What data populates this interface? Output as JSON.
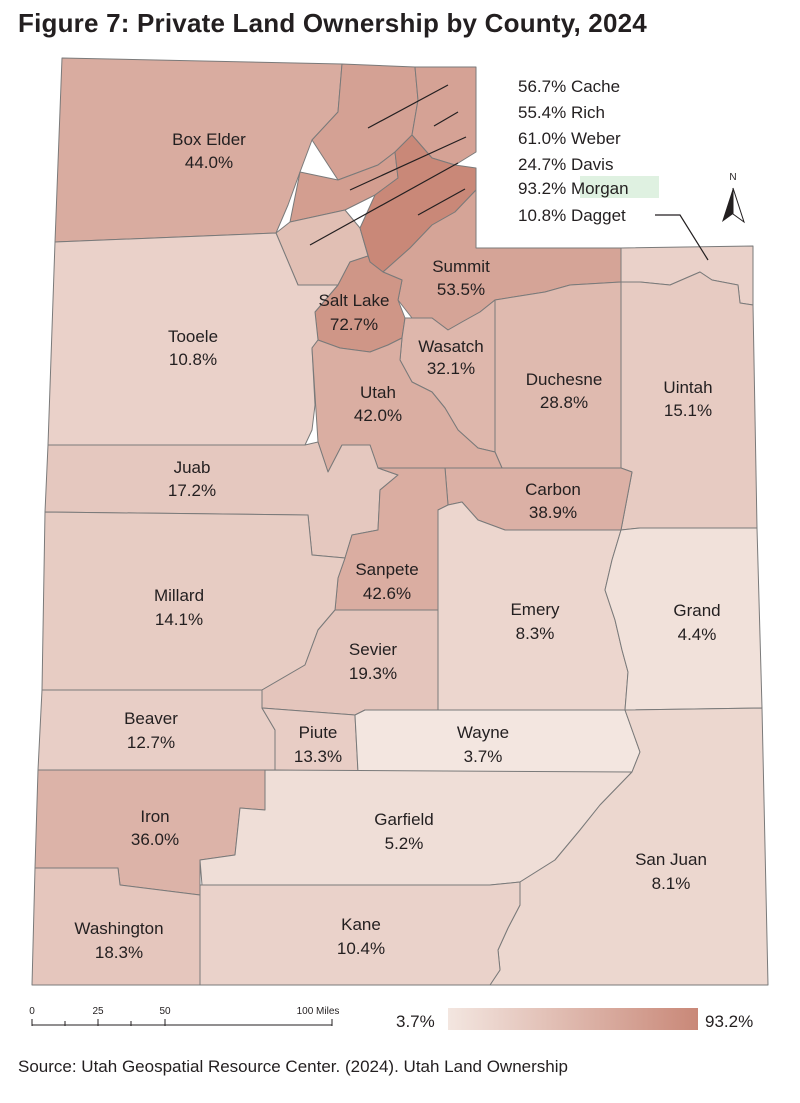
{
  "title": "Figure 7: Private Land Ownership by County, 2024",
  "source": "Source: Utah Geospatial Resource Center. (2024). Utah Land Ownership",
  "north_label": "N",
  "scale_bar": {
    "ticks": [
      "0",
      "25",
      "50",
      "100 Miles"
    ]
  },
  "legend": {
    "min": "3.7%",
    "max": "93.2%",
    "min_color": "#f3e6e0",
    "max_color": "#c98878"
  },
  "highlight_color": "#dff1e1",
  "counties": [
    {
      "id": "box-elder",
      "name": "Box Elder",
      "value": "44.0%",
      "pct": 44.0
    },
    {
      "id": "cache",
      "name": "Cache",
      "value": "56.7%",
      "pct": 56.7
    },
    {
      "id": "rich",
      "name": "Rich",
      "value": "55.4%",
      "pct": 55.4
    },
    {
      "id": "weber",
      "name": "Weber",
      "value": "61.0%",
      "pct": 61.0
    },
    {
      "id": "davis",
      "name": "Davis",
      "value": "24.7%",
      "pct": 24.7
    },
    {
      "id": "morgan",
      "name": "Morgan",
      "value": "93.2%",
      "pct": 93.2
    },
    {
      "id": "daggett",
      "name": "Dagget",
      "value": "10.8%",
      "pct": 10.8
    },
    {
      "id": "summit",
      "name": "Summit",
      "value": "53.5%",
      "pct": 53.5
    },
    {
      "id": "salt-lake",
      "name": "Salt Lake",
      "value": "72.7%",
      "pct": 72.7
    },
    {
      "id": "tooele",
      "name": "Tooele",
      "value": "10.8%",
      "pct": 10.8
    },
    {
      "id": "wasatch",
      "name": "Wasatch",
      "value": "32.1%",
      "pct": 32.1
    },
    {
      "id": "duchesne",
      "name": "Duchesne",
      "value": "28.8%",
      "pct": 28.8
    },
    {
      "id": "uintah",
      "name": "Uintah",
      "value": "15.1%",
      "pct": 15.1
    },
    {
      "id": "utah",
      "name": "Utah",
      "value": "42.0%",
      "pct": 42.0
    },
    {
      "id": "juab",
      "name": "Juab",
      "value": "17.2%",
      "pct": 17.2
    },
    {
      "id": "carbon",
      "name": "Carbon",
      "value": "38.9%",
      "pct": 38.9
    },
    {
      "id": "sanpete",
      "name": "Sanpete",
      "value": "42.6%",
      "pct": 42.6
    },
    {
      "id": "millard",
      "name": "Millard",
      "value": "14.1%",
      "pct": 14.1
    },
    {
      "id": "emery",
      "name": "Emery",
      "value": "8.3%",
      "pct": 8.3
    },
    {
      "id": "grand",
      "name": "Grand",
      "value": "4.4%",
      "pct": 4.4
    },
    {
      "id": "sevier",
      "name": "Sevier",
      "value": "19.3%",
      "pct": 19.3
    },
    {
      "id": "beaver",
      "name": "Beaver",
      "value": "12.7%",
      "pct": 12.7
    },
    {
      "id": "piute",
      "name": "Piute",
      "value": "13.3%",
      "pct": 13.3
    },
    {
      "id": "wayne",
      "name": "Wayne",
      "value": "3.7%",
      "pct": 3.7
    },
    {
      "id": "iron",
      "name": "Iron",
      "value": "36.0%",
      "pct": 36.0
    },
    {
      "id": "garfield",
      "name": "Garfield",
      "value": "5.2%",
      "pct": 5.2
    },
    {
      "id": "san-juan",
      "name": "San Juan",
      "value": "8.1%",
      "pct": 8.1
    },
    {
      "id": "washington",
      "name": "Washington",
      "value": "18.3%",
      "pct": 18.3
    },
    {
      "id": "kane",
      "name": "Kane",
      "value": "10.4%",
      "pct": 10.4
    }
  ]
}
